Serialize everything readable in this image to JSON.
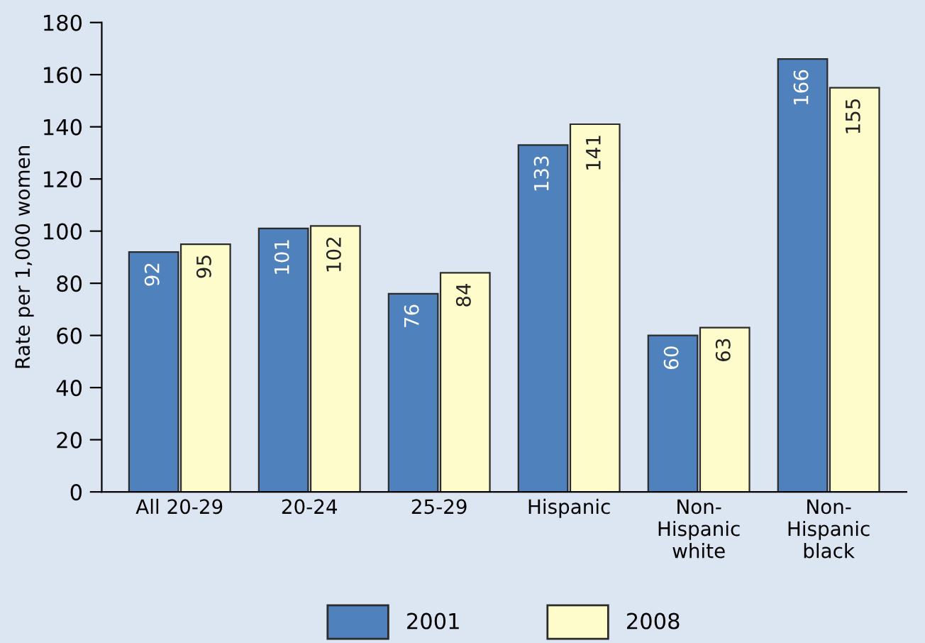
{
  "chart_data": {
    "type": "bar",
    "ylabel": "Rate per 1,000 women",
    "categories": [
      "All 20-29",
      "20-24",
      "25-29",
      "Hispanic",
      "Non-\nHispanic\nwhite",
      "Non-\nHispanic\nblack"
    ],
    "series": [
      {
        "name": "2001",
        "color": "#4f81bd",
        "values": [
          92,
          101,
          76,
          133,
          60,
          166
        ]
      },
      {
        "name": "2008",
        "color": "#fffccc",
        "values": [
          95,
          102,
          84,
          141,
          63,
          155
        ]
      }
    ],
    "ylim": [
      0,
      180
    ],
    "yticks": [
      0,
      20,
      40,
      60,
      80,
      100,
      120,
      140,
      160,
      180
    ],
    "data_labels": true,
    "grid": false,
    "legend": "bottom"
  }
}
